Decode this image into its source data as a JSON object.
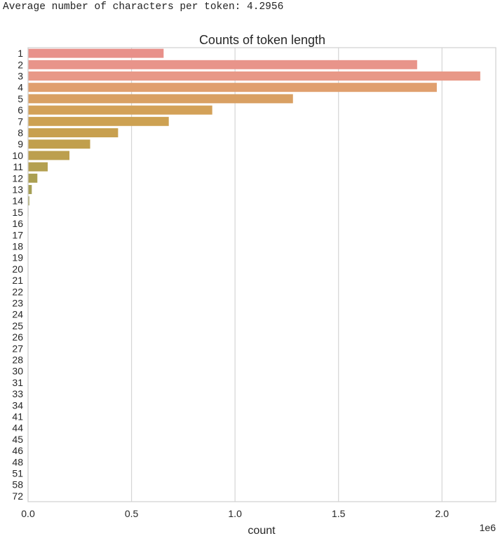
{
  "output_text": "Average number of characters per token: 4.2956",
  "chart_data": {
    "type": "bar",
    "orientation": "horizontal",
    "title": "Counts of token length",
    "xlabel": "count",
    "ylabel": "",
    "x_offset_label": "1e6",
    "xlim": [
      0,
      2.26
    ],
    "x_ticks": [
      0.0,
      0.5,
      1.0,
      1.5,
      2.0
    ],
    "x_tick_labels": [
      "0.0",
      "0.5",
      "1.0",
      "1.5",
      "2.0"
    ],
    "grid": "vertical",
    "categories": [
      "1",
      "2",
      "3",
      "4",
      "5",
      "6",
      "7",
      "8",
      "9",
      "10",
      "11",
      "12",
      "13",
      "14",
      "15",
      "16",
      "17",
      "18",
      "19",
      "20",
      "21",
      "22",
      "23",
      "24",
      "25",
      "26",
      "27",
      "28",
      "30",
      "31",
      "33",
      "34",
      "41",
      "44",
      "45",
      "46",
      "48",
      "51",
      "58",
      "72"
    ],
    "values": [
      0.655,
      1.88,
      2.185,
      1.975,
      1.28,
      0.89,
      0.68,
      0.435,
      0.3,
      0.2,
      0.095,
      0.045,
      0.018,
      0.006,
      0.002,
      0.001,
      0.0005,
      0.0003,
      0.0002,
      0.0001,
      0.0001,
      5e-05,
      5e-05,
      3e-05,
      2e-05,
      2e-05,
      1e-05,
      1e-05,
      1e-05,
      1e-05,
      1e-05,
      1e-05,
      1e-05,
      1e-05,
      1e-05,
      1e-05,
      1e-05,
      1e-05,
      1e-05,
      1e-05
    ],
    "colors": [
      "#e8908a",
      "#e8948a",
      "#e89887",
      "#e09f6e",
      "#d9a063",
      "#d3a158",
      "#cda152",
      "#c8a04f",
      "#c19f4d",
      "#bc9f4e",
      "#b4a050",
      "#ab9f52",
      "#a59f55",
      "#a09f58",
      "#9a9f5c",
      "#949f60",
      "#8ea064",
      "#88a068",
      "#82a06c",
      "#7ca070",
      "#76a074",
      "#70a078",
      "#6aa07c",
      "#64a080",
      "#5ea084",
      "#589f88",
      "#529f8c",
      "#4c9f90",
      "#469f94",
      "#409f98",
      "#3a9f9c",
      "#349fa0",
      "#309fa4",
      "#2e9fa8",
      "#2d9fac",
      "#2c9fb0",
      "#2c9fb4",
      "#2c9fb8",
      "#2c9fbc",
      "#2c9fc0"
    ]
  }
}
